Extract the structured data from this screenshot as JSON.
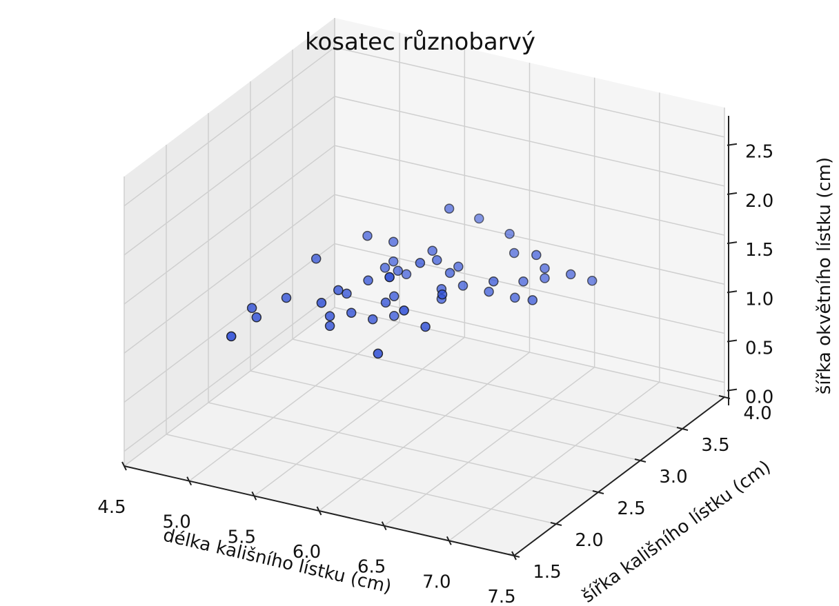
{
  "chart_data": {
    "type": "scatter3d",
    "title": "kosatec různobarvý",
    "xlabel": "délka kališního lístku (cm)",
    "ylabel": "šířka kališního lístku (cm)",
    "zlabel": "šířka okvětního lístku (cm)",
    "xlim": [
      4.5,
      7.5
    ],
    "ylim": [
      1.5,
      4.0
    ],
    "zlim": [
      0.0,
      2.5
    ],
    "x_ticks": [
      "4.5",
      "5.0",
      "5.5",
      "6.0",
      "6.5",
      "7.0",
      "7.5"
    ],
    "y_ticks": [
      "1.5",
      "2.0",
      "2.5",
      "3.0",
      "3.5",
      "4.0"
    ],
    "z_ticks": [
      "0.0",
      "0.5",
      "1.0",
      "1.5",
      "2.0",
      "2.5"
    ],
    "grid": true,
    "marker_color": "#2f4fd6",
    "edge_color": "#111111",
    "x": [
      7.0,
      6.4,
      6.9,
      5.5,
      6.5,
      5.7,
      6.3,
      4.9,
      6.6,
      5.2,
      5.0,
      5.9,
      6.0,
      6.1,
      5.6,
      6.7,
      5.6,
      5.8,
      6.2,
      5.6,
      5.9,
      6.1,
      6.3,
      6.1,
      6.4,
      6.6,
      6.8,
      6.7,
      6.0,
      5.7,
      5.5,
      5.5,
      5.8,
      6.0,
      5.4,
      6.0,
      6.7,
      6.3,
      5.6,
      5.5,
      5.5,
      6.1,
      5.8,
      5.0,
      5.6,
      5.7,
      5.7,
      6.2,
      5.1,
      5.7
    ],
    "y": [
      3.2,
      3.2,
      3.1,
      2.3,
      2.8,
      2.8,
      3.3,
      2.4,
      2.9,
      2.7,
      2.0,
      3.0,
      2.2,
      2.9,
      2.9,
      3.1,
      3.0,
      2.7,
      2.2,
      2.5,
      3.2,
      2.8,
      2.5,
      2.8,
      2.9,
      3.0,
      2.8,
      3.0,
      2.9,
      2.6,
      2.4,
      2.4,
      2.7,
      2.7,
      3.0,
      3.4,
      3.1,
      2.3,
      3.0,
      2.5,
      2.6,
      3.0,
      2.6,
      2.3,
      2.7,
      3.0,
      2.9,
      2.9,
      2.5,
      2.8
    ],
    "z": [
      1.4,
      1.5,
      1.5,
      1.3,
      1.5,
      1.3,
      1.6,
      1.0,
      1.3,
      1.4,
      1.0,
      1.5,
      1.0,
      1.4,
      1.3,
      1.4,
      1.5,
      1.0,
      1.5,
      1.1,
      1.8,
      1.3,
      1.5,
      1.2,
      1.3,
      1.4,
      1.4,
      1.7,
      1.5,
      1.0,
      1.1,
      1.0,
      1.2,
      1.6,
      1.5,
      1.6,
      1.5,
      1.3,
      1.3,
      1.3,
      1.2,
      1.4,
      1.2,
      1.0,
      1.3,
      1.2,
      1.3,
      1.3,
      1.1,
      1.3
    ]
  }
}
